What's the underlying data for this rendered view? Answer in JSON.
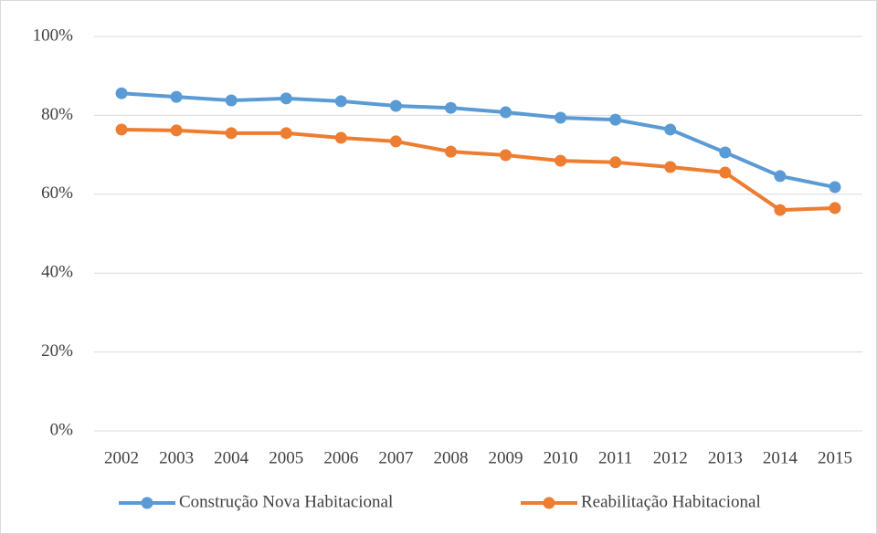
{
  "chart_data": {
    "type": "line",
    "categories": [
      "2002",
      "2003",
      "2004",
      "2005",
      "2006",
      "2007",
      "2008",
      "2009",
      "2010",
      "2011",
      "2012",
      "2013",
      "2014",
      "2015"
    ],
    "series": [
      {
        "name": "Construção Nova Habitacional",
        "color": "#5b9bd5",
        "values": [
          85.6,
          84.7,
          83.8,
          84.3,
          83.6,
          82.4,
          81.9,
          80.8,
          79.4,
          78.9,
          76.4,
          70.6,
          64.6,
          61.8
        ]
      },
      {
        "name": "Reabilitação Habitacional",
        "color": "#ed7d31",
        "values": [
          76.4,
          76.2,
          75.5,
          75.5,
          74.3,
          73.4,
          70.8,
          69.9,
          68.5,
          68.1,
          66.9,
          65.5,
          56.0,
          56.5
        ]
      }
    ],
    "ylim": [
      0,
      100
    ],
    "yticks": [
      {
        "value": 0,
        "label": "0%"
      },
      {
        "value": 20,
        "label": "20%"
      },
      {
        "value": 40,
        "label": "40%"
      },
      {
        "value": 60,
        "label": "60%"
      },
      {
        "value": 80,
        "label": "80%"
      },
      {
        "value": 100,
        "label": "100%"
      }
    ],
    "grid": true,
    "legend": "bottom"
  }
}
